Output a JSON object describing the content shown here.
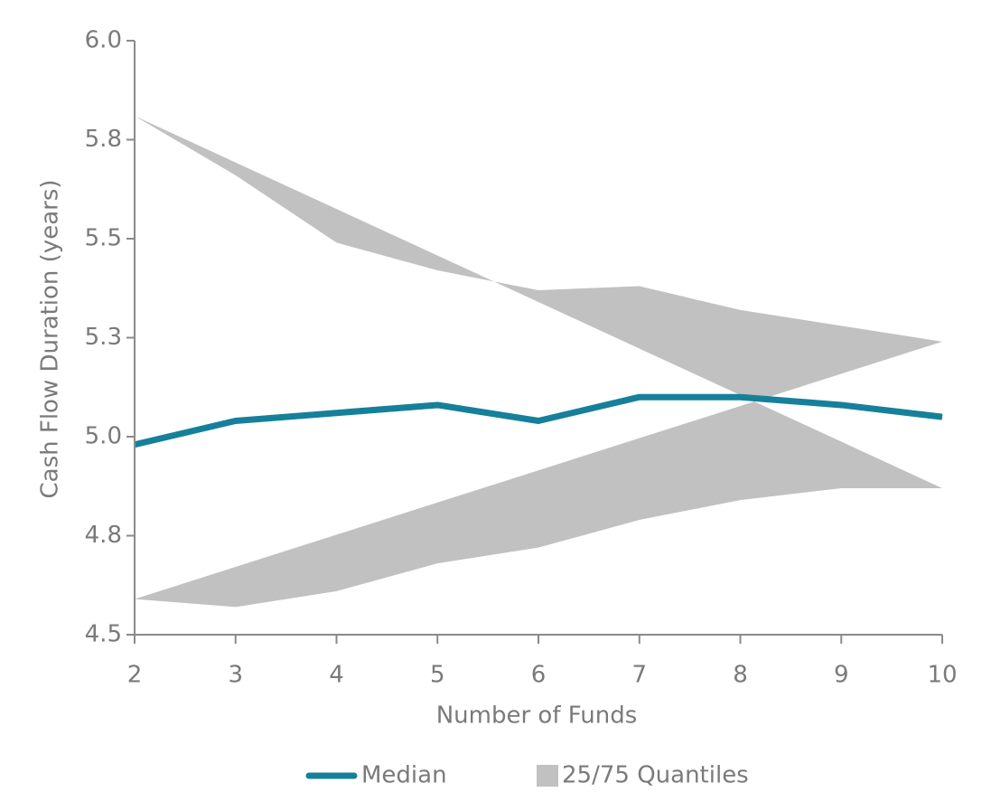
{
  "chart_data": {
    "type": "line",
    "xlabel": "Number of Funds",
    "ylabel": "Cash Flow Duration (years)",
    "x": [
      2,
      3,
      4,
      5,
      6,
      7,
      8,
      9,
      10
    ],
    "xlim": [
      2,
      10
    ],
    "xticks": [
      2,
      3,
      4,
      5,
      6,
      7,
      8,
      9,
      10
    ],
    "ylim": [
      4.5,
      6.0
    ],
    "yticks": [
      4.5,
      {
        "value": 4.75,
        "label": "4.8"
      },
      {
        "value": 5.0,
        "label": "5.0"
      },
      {
        "value": 5.25,
        "label": "5.3"
      },
      5.5,
      {
        "value": 5.75,
        "label": "5.8"
      },
      {
        "value": 6.0,
        "label": "6.0"
      }
    ],
    "band": {
      "name": "25/75 Quantiles",
      "color": "#c0c1c0",
      "upper": [
        5.81,
        5.66,
        5.49,
        5.42,
        5.37,
        5.38,
        5.32,
        5.28,
        5.24
      ],
      "lower": [
        4.59,
        4.57,
        4.61,
        4.68,
        4.72,
        4.79,
        4.84,
        4.87,
        4.87
      ]
    },
    "series": [
      {
        "name": "Median",
        "color": "#16809b",
        "values": [
          4.98,
          5.04,
          5.06,
          5.08,
          5.04,
          5.1,
          5.1,
          5.08,
          5.05
        ]
      }
    ],
    "legend": "bottom"
  }
}
